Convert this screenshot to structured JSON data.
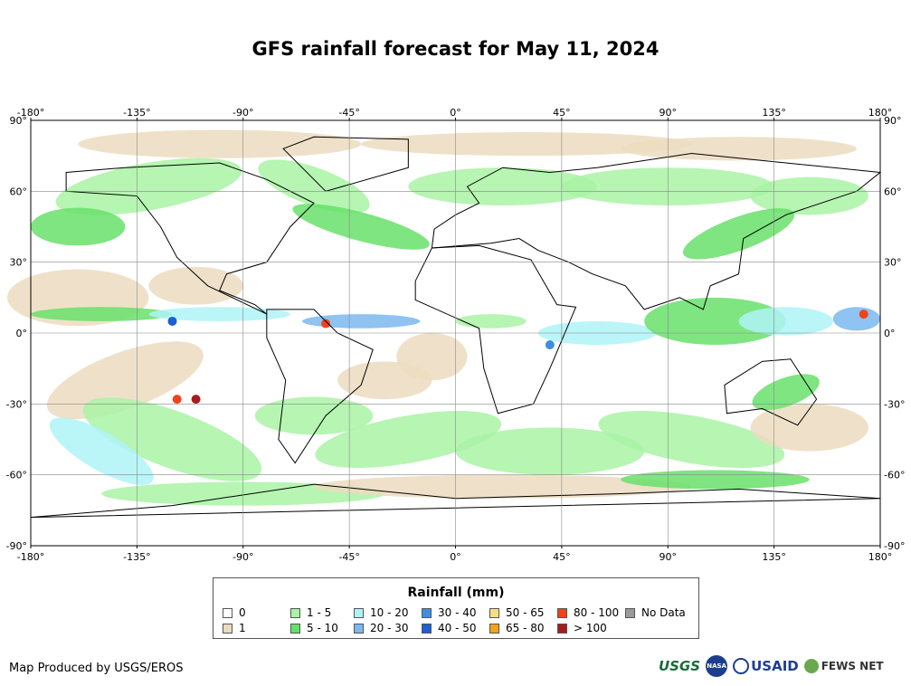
{
  "title": "GFS rainfall forecast for May 11, 2024",
  "map": {
    "lon_ticks": [
      "-180°",
      "-135°",
      "-90°",
      "-45°",
      "0°",
      "45°",
      "90°",
      "135°",
      "180°"
    ],
    "lat_ticks": [
      "90°",
      "60°",
      "30°",
      "0°",
      "-30°",
      "-60°",
      "-90°"
    ],
    "lon_range": [
      -180,
      180
    ],
    "lat_range": [
      -90,
      90
    ],
    "grid": true
  },
  "legend": {
    "title": "Rainfall (mm)",
    "items": [
      {
        "label": "0",
        "color": "#ffffff"
      },
      {
        "label": "1",
        "color": "#ecdcbf"
      },
      {
        "label": "1 - 5",
        "color": "#a9f3a4"
      },
      {
        "label": "5 - 10",
        "color": "#67e06a"
      },
      {
        "label": "10 - 20",
        "color": "#aef3f7"
      },
      {
        "label": "20 - 30",
        "color": "#7ab8f0"
      },
      {
        "label": "30 - 40",
        "color": "#3e8ee2"
      },
      {
        "label": "40 - 50",
        "color": "#1d5fd6"
      },
      {
        "label": "50 - 65",
        "color": "#f7de82"
      },
      {
        "label": "65 - 80",
        "color": "#f3a21d"
      },
      {
        "label": "80 - 100",
        "color": "#f0431a"
      },
      {
        "label": "> 100",
        "color": "#a51d1d"
      },
      {
        "label": "No Data",
        "color": "#9a9a9a"
      }
    ]
  },
  "footer": {
    "credit": "Map Produced by USGS/EROS",
    "logos": {
      "usgs": "USGS",
      "nasa": "NASA",
      "usaid": "USAID",
      "fews": "FEWS NET"
    }
  }
}
